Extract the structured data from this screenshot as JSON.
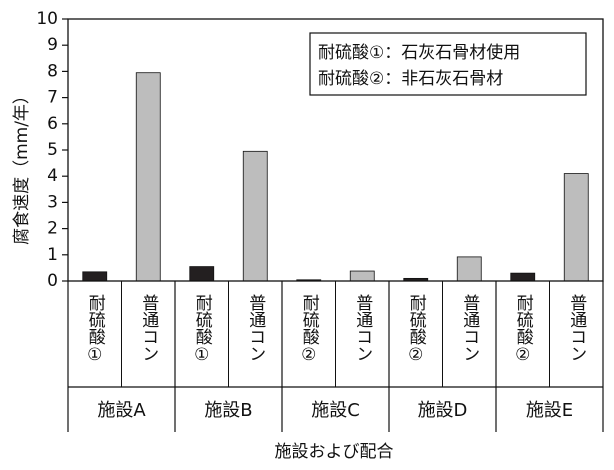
{
  "chart_data": {
    "type": "bar",
    "ylabel": "腐食速度（mm/年）",
    "xlabel": "施設および配合",
    "ylim": [
      0,
      10
    ],
    "yticks": [
      "0",
      "1",
      "2",
      "3",
      "4",
      "5",
      "6",
      "7",
      "8",
      "9",
      "10"
    ],
    "grid": false,
    "legend_placement": "top-right",
    "legend": [
      "耐硫酸①：石灰石骨材使用",
      "耐硫酸②：非石灰石骨材"
    ],
    "colors": {
      "acid_resistant": "#231f20",
      "ordinary": "#bdbdbd"
    },
    "groups": [
      {
        "name": "施設A",
        "bars": [
          {
            "label": "耐硫酸①",
            "value": 0.35,
            "kind": "acid_resistant"
          },
          {
            "label": "普通コン",
            "value": 7.95,
            "kind": "ordinary"
          }
        ]
      },
      {
        "name": "施設B",
        "bars": [
          {
            "label": "耐硫酸①",
            "value": 0.55,
            "kind": "acid_resistant"
          },
          {
            "label": "普通コン",
            "value": 4.95,
            "kind": "ordinary"
          }
        ]
      },
      {
        "name": "施設C",
        "bars": [
          {
            "label": "耐硫酸②",
            "value": 0.03,
            "kind": "acid_resistant"
          },
          {
            "label": "普通コン",
            "value": 0.38,
            "kind": "ordinary"
          }
        ]
      },
      {
        "name": "施設D",
        "bars": [
          {
            "label": "耐硫酸②",
            "value": 0.1,
            "kind": "acid_resistant"
          },
          {
            "label": "普通コン",
            "value": 0.92,
            "kind": "ordinary"
          }
        ]
      },
      {
        "name": "施設E",
        "bars": [
          {
            "label": "耐硫酸②",
            "value": 0.3,
            "kind": "acid_resistant"
          },
          {
            "label": "普通コン",
            "value": 4.1,
            "kind": "ordinary"
          }
        ]
      }
    ]
  }
}
